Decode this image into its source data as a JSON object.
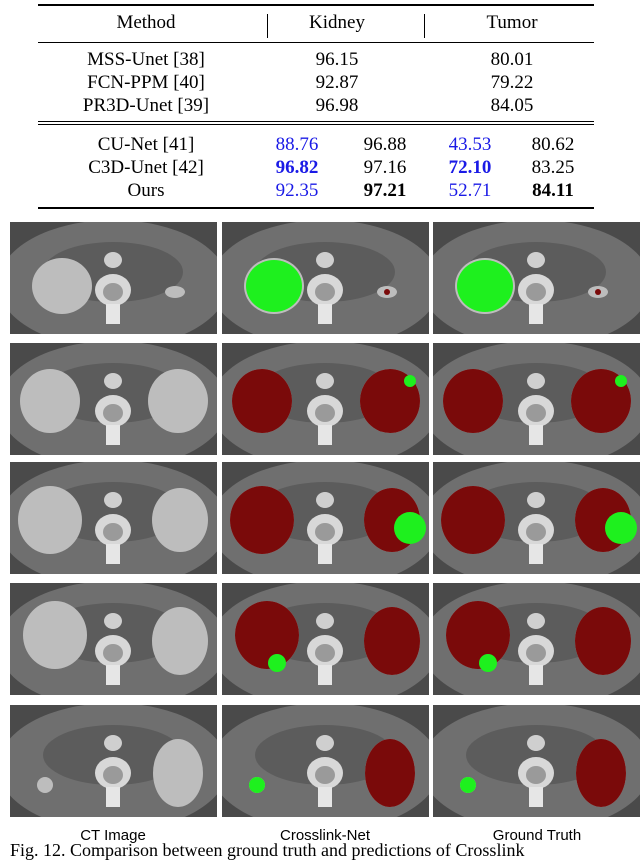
{
  "table": {
    "headers": [
      "Method",
      "Kidney",
      "Tumor"
    ],
    "group1": [
      {
        "method": "MSS-Unet [38]",
        "kidney": "96.15",
        "tumor": "80.01"
      },
      {
        "method": "FCN-PPM [40]",
        "kidney": "92.87",
        "tumor": "79.22"
      },
      {
        "method": "PR3D-Unet [39]",
        "kidney": "96.98",
        "tumor": "84.05"
      }
    ],
    "group2": [
      {
        "method": "CU-Net [41]",
        "k1": "88.76",
        "k2": "96.88",
        "t1": "43.53",
        "t2": "80.62",
        "bold": {
          "k1": false,
          "k2": false,
          "t1": false,
          "t2": false
        }
      },
      {
        "method": "C3D-Unet [42]",
        "k1": "96.82",
        "k2": "97.16",
        "t1": "72.10",
        "t2": "83.25",
        "bold": {
          "k1": true,
          "k2": false,
          "t1": true,
          "t2": false
        }
      },
      {
        "method": "Ours",
        "k1": "92.35",
        "k2": "97.21",
        "t1": "52.71",
        "t2": "84.11",
        "bold": {
          "k1": false,
          "k2": true,
          "t1": false,
          "t2": true
        }
      }
    ]
  },
  "figure": {
    "column_labels": [
      "CT Image",
      "Crosslink-Net",
      "Ground Truth"
    ],
    "caption": "Fig. 12.   Comparison between ground truth and predictions of Crosslink",
    "colors": {
      "kidney": "#7a0a0a",
      "tumor": "#1ef01e"
    }
  }
}
